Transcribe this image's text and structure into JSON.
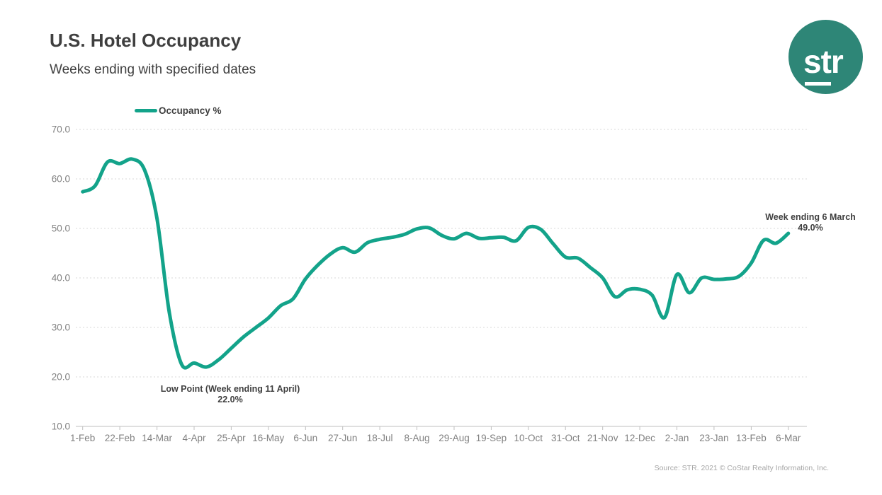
{
  "header": {
    "title": "U.S. Hotel Occupancy",
    "subtitle": "Weeks ending with specified dates"
  },
  "logo": {
    "text": "str"
  },
  "legend": {
    "label": "Occupancy %"
  },
  "annotations": {
    "low_point": {
      "line1": "Low Point (Week ending 11 April)",
      "line2": "22.0%"
    },
    "latest": {
      "line1": "Week ending 6 March",
      "line2": "49.0%"
    }
  },
  "source": "Source: STR. 2021 © CoStar Realty Information, Inc.",
  "colors": {
    "line": "#13a38a",
    "logo_circle": "#2e8677",
    "grid": "#d9d9d9",
    "baseline": "#bfbfbf",
    "axis_text": "#808080",
    "heading_text": "#3f3f3f",
    "source_text": "#a6a6a6"
  },
  "chart_data": {
    "type": "line",
    "title": "U.S. Hotel Occupancy",
    "subtitle": "Weeks ending with specified dates",
    "series_name": "Occupancy %",
    "x": [
      "1-Feb",
      "8-Feb",
      "15-Feb",
      "22-Feb",
      "29-Feb",
      "7-Mar",
      "14-Mar",
      "21-Mar",
      "28-Mar",
      "4-Apr",
      "11-Apr",
      "18-Apr",
      "25-Apr",
      "2-May",
      "9-May",
      "16-May",
      "23-May",
      "30-May",
      "6-Jun",
      "13-Jun",
      "20-Jun",
      "27-Jun",
      "4-Jul",
      "11-Jul",
      "18-Jul",
      "25-Jul",
      "1-Aug",
      "8-Aug",
      "15-Aug",
      "22-Aug",
      "29-Aug",
      "5-Sep",
      "12-Sep",
      "19-Sep",
      "26-Sep",
      "3-Oct",
      "10-Oct",
      "17-Oct",
      "24-Oct",
      "31-Oct",
      "7-Nov",
      "14-Nov",
      "21-Nov",
      "28-Nov",
      "5-Dec",
      "12-Dec",
      "19-Dec",
      "26-Dec",
      "2-Jan",
      "9-Jan",
      "16-Jan",
      "23-Jan",
      "30-Jan",
      "6-Feb",
      "13-Feb",
      "20-Feb",
      "27-Feb",
      "6-Mar"
    ],
    "values": [
      57.4,
      58.6,
      63.4,
      63.1,
      64.0,
      61.8,
      52.0,
      33.0,
      22.5,
      22.8,
      22.0,
      23.5,
      25.8,
      28.1,
      30.0,
      31.9,
      34.4,
      35.8,
      39.8,
      42.6,
      44.8,
      46.1,
      45.2,
      47.1,
      47.8,
      48.2,
      48.8,
      49.9,
      50.1,
      48.6,
      47.9,
      49.0,
      48.0,
      48.1,
      48.2,
      47.5,
      50.2,
      49.8,
      46.9,
      44.2,
      44.0,
      42.1,
      40.0,
      36.2,
      37.6,
      37.7,
      36.5,
      32.0,
      40.7,
      37.0,
      40.0,
      39.7,
      39.8,
      40.3,
      43.0,
      47.6,
      47.0,
      49.0
    ],
    "ylim": [
      10,
      70
    ],
    "ytick_step": 10,
    "yticks": [
      "10.0",
      "20.0",
      "30.0",
      "40.0",
      "50.0",
      "60.0",
      "70.0"
    ],
    "xtick_every": 3,
    "grid": "horizontal-dashed",
    "legend_position": "top-left",
    "annotations": [
      {
        "x": "11-Apr",
        "value": 22.0,
        "text": "Low Point (Week ending 11 April) 22.0%"
      },
      {
        "x": "6-Mar",
        "value": 49.0,
        "text": "Week ending 6 March 49.0%"
      }
    ]
  }
}
